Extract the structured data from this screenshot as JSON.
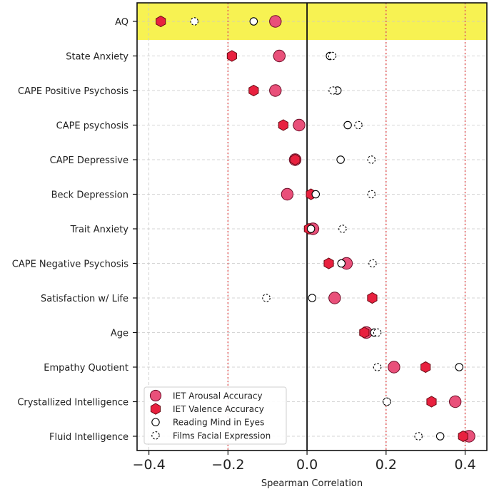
{
  "chart_data": {
    "type": "scatter",
    "title": "",
    "xlabel": "Spearman Correlation",
    "ylabel": "",
    "xlim": [
      -0.43,
      0.455
    ],
    "x_ticks": [
      -0.4,
      -0.2,
      0.0,
      0.2,
      0.4
    ],
    "x_tick_labels": [
      "−0.4",
      "−0.2",
      "0.0",
      "0.2",
      "0.4"
    ],
    "grid": true,
    "reference_lines": [
      -0.2,
      0.2,
      0.4
    ],
    "highlight_category": "AQ",
    "highlight_color": "#f7f252",
    "categories": [
      "AQ",
      "State Anxiety",
      "CAPE Positive Psychosis",
      "CAPE psychosis",
      "CAPE Depressive",
      "Beck Depression",
      "Trait Anxiety",
      "CAPE Negative Psychosis",
      "Satisfaction w/ Life",
      "Age",
      "Empathy Quotient",
      "Crystallized Intelligence",
      "Fluid Intelligence"
    ],
    "series": [
      {
        "name": "IET Arousal Accuracy",
        "marker": "circle-filled",
        "color": "#e9507a",
        "values": [
          -0.08,
          -0.07,
          -0.08,
          -0.02,
          -0.03,
          -0.05,
          0.015,
          0.1,
          0.07,
          0.15,
          0.22,
          0.375,
          0.41
        ]
      },
      {
        "name": "IET Valence Accuracy",
        "marker": "hexagon-filled",
        "color": "#e8213f",
        "values": [
          -0.37,
          -0.19,
          -0.135,
          -0.06,
          -0.03,
          0.01,
          0.005,
          0.055,
          0.165,
          0.145,
          0.3,
          0.315,
          0.395
        ]
      },
      {
        "name": "Reading Mind in Eyes",
        "marker": "circle-open",
        "color": "#000000",
        "values": [
          -0.135,
          0.058,
          0.077,
          0.103,
          0.085,
          0.022,
          0.01,
          0.087,
          0.013,
          0.17,
          0.385,
          0.202,
          0.337
        ]
      },
      {
        "name": "Films Facial Expression",
        "marker": "circle-dashed",
        "color": "#000000",
        "values": [
          -0.285,
          0.064,
          0.065,
          0.13,
          0.163,
          0.163,
          0.09,
          0.166,
          -0.103,
          0.178,
          0.178,
          0.202,
          0.282
        ]
      }
    ],
    "legend_location": "lower-left"
  }
}
